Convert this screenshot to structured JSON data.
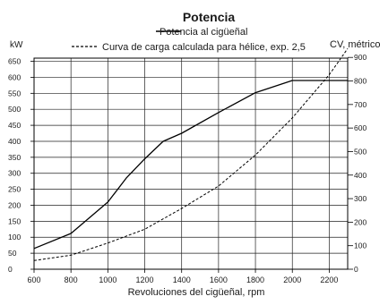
{
  "chart_data": {
    "type": "line",
    "title": "Potencia",
    "xlabel": "Revoluciones del cigüeñal, rpm",
    "ylabel_left": "kW",
    "ylabel_right": "CV, métrico",
    "xlim": [
      600,
      2300
    ],
    "ylim_left": [
      0,
      660
    ],
    "ylim_right": [
      0,
      897
    ],
    "x_ticks": [
      "600",
      "800",
      "1000",
      "1200",
      "1400",
      "1600",
      "1800",
      "2000",
      "2200"
    ],
    "y_ticks_left": [
      "0",
      "50",
      "100",
      "150",
      "200",
      "250",
      "300",
      "350",
      "400",
      "450",
      "500",
      "550",
      "600",
      "650"
    ],
    "y_ticks_right": [
      "0",
      "100",
      "200",
      "300",
      "400",
      "500",
      "600",
      "700",
      "800",
      "900"
    ],
    "grid": true,
    "legend_position": "top",
    "series": [
      {
        "name": "Potencia al cigüeñal",
        "style": "solid",
        "color": "#000000",
        "x": [
          600,
          800,
          1000,
          1100,
          1200,
          1300,
          1400,
          1600,
          1800,
          2000,
          2100,
          2200,
          2300
        ],
        "y": [
          65,
          112,
          210,
          285,
          345,
          400,
          425,
          490,
          552,
          590,
          590,
          590,
          590
        ]
      },
      {
        "name": "Curva de carga calculada para hélice, exp. 2,5",
        "style": "dashed",
        "color": "#000000",
        "x": [
          600,
          800,
          1000,
          1200,
          1400,
          1600,
          1800,
          2000,
          2200,
          2300
        ],
        "y": [
          27,
          44,
          82,
          125,
          190,
          260,
          357,
          473,
          608,
          690
        ]
      }
    ]
  }
}
